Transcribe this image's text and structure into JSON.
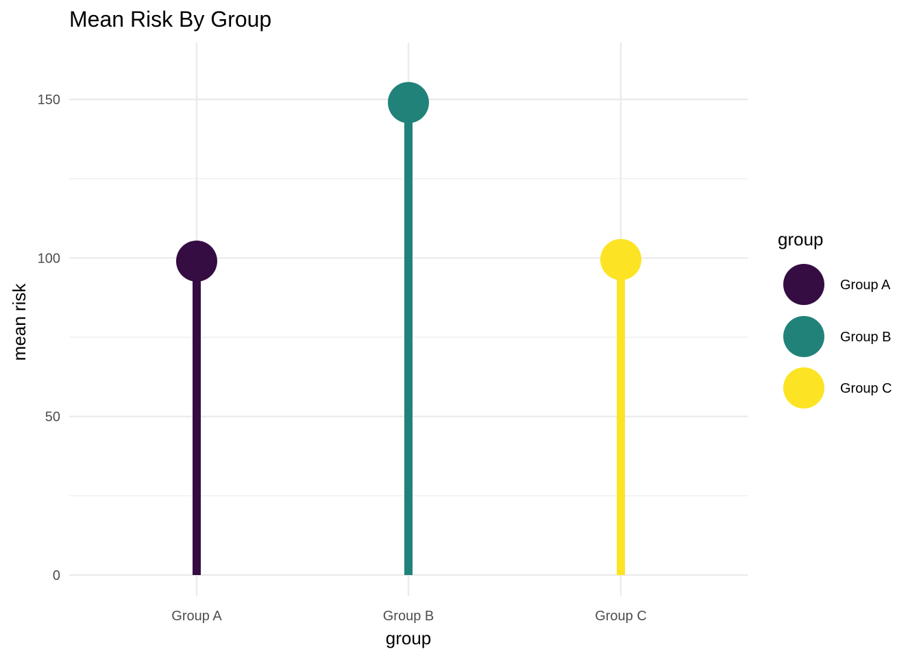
{
  "chart_data": {
    "type": "lollipop",
    "title": "Mean Risk By Group",
    "xlabel": "group",
    "ylabel": "mean risk",
    "categories": [
      "Group A",
      "Group B",
      "Group C"
    ],
    "values": [
      99,
      149,
      99.5
    ],
    "colors": [
      "#350d42",
      "#21827a",
      "#fce424"
    ],
    "ylim": [
      -6,
      168
    ],
    "yticks": [
      0,
      50,
      100,
      150
    ],
    "grid": true,
    "legend": {
      "title": "group",
      "placement": "right",
      "items": [
        "Group A",
        "Group B",
        "Group C"
      ]
    }
  }
}
